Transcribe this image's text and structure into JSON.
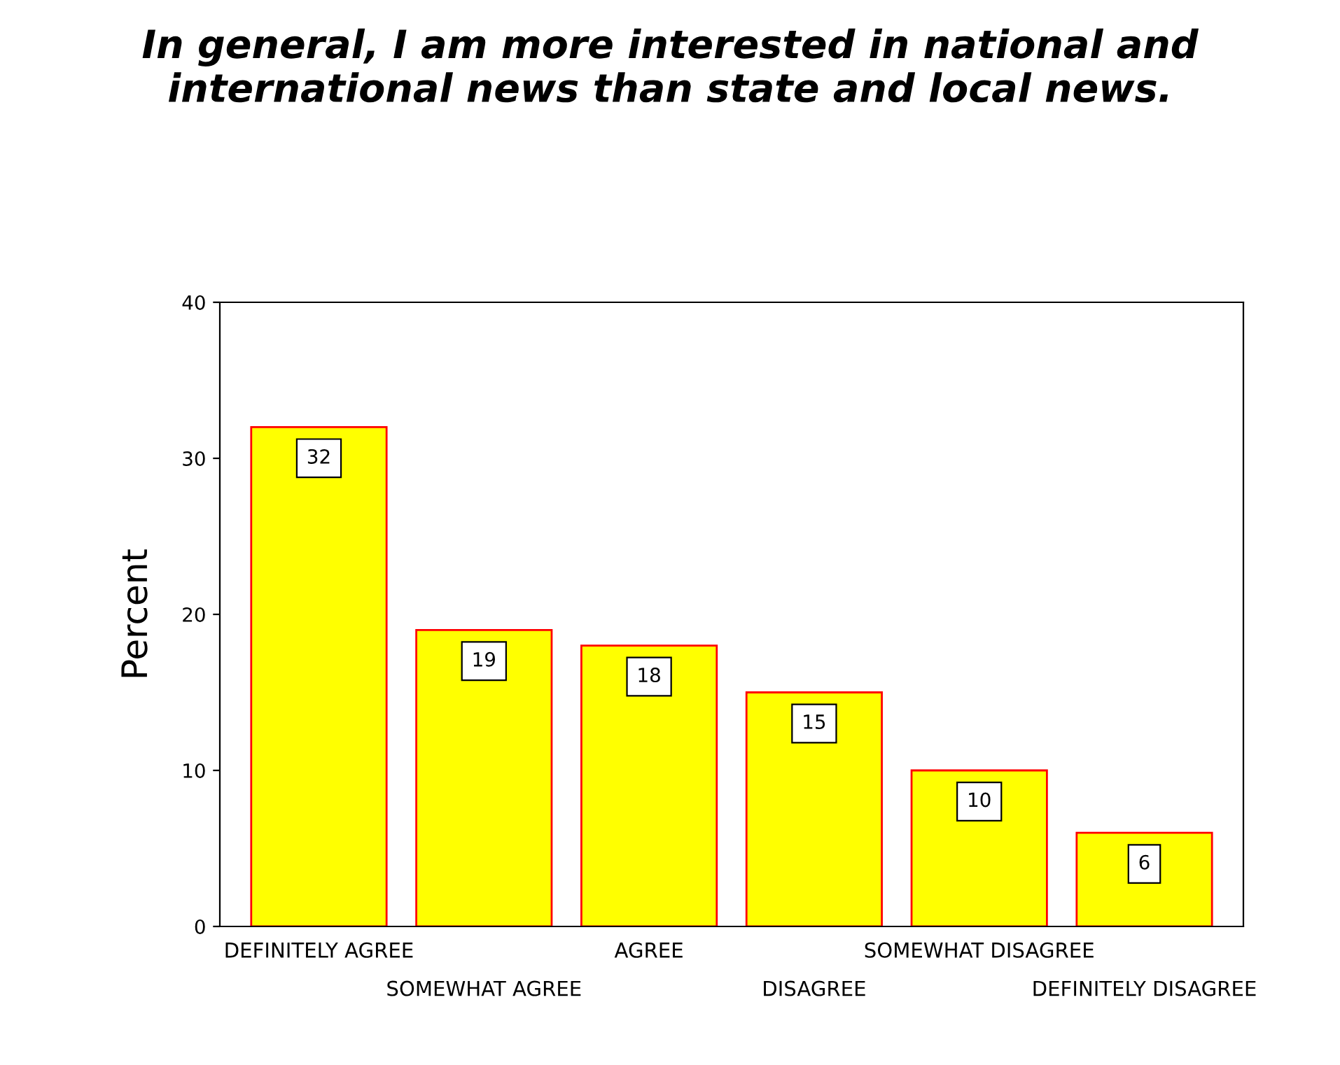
{
  "chart_data": {
    "type": "bar",
    "title": "In general, I am more interested in national and\ninternational news than state and local news.",
    "ylabel": "Percent",
    "categories": [
      "DEFINITELY AGREE",
      "SOMEWHAT AGREE",
      "AGREE",
      "DISAGREE",
      "SOMEWHAT DISAGREE",
      "DEFINITELY DISAGREE"
    ],
    "values": [
      32,
      19,
      18,
      15,
      10,
      6
    ],
    "color": "#ffff00",
    "ylim": [
      0,
      40
    ],
    "yticks": [
      0,
      10,
      20,
      30,
      40
    ],
    "data_labels": true,
    "grid": false,
    "legend": false
  }
}
